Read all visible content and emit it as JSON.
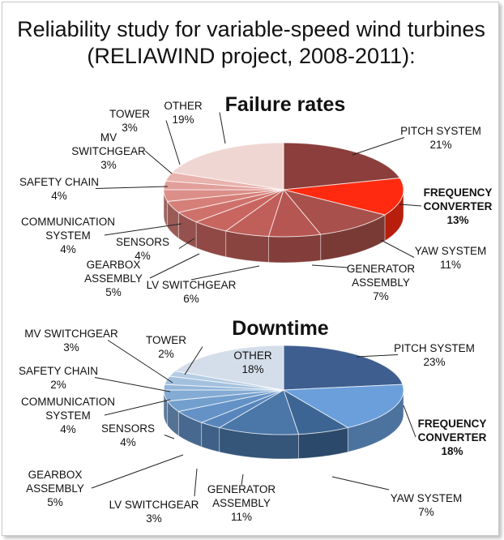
{
  "page_title": "Reliability study for variable-speed wind turbines (RELIAWIND project, 2008-2011):",
  "chart_data": [
    {
      "type": "pie",
      "title": "Failure rates",
      "categories": [
        "PITCH SYSTEM",
        "FREQUENCY CONVERTER",
        "YAW SYSTEM",
        "GENERATOR ASSEMBLY",
        "LV SWITCHGEAR",
        "GEARBOX ASSEMBLY",
        "SENSORS",
        "COMMUNICATION SYSTEM",
        "SAFETY CHAIN",
        "MV SWITCHGEAR",
        "TOWER",
        "OTHER"
      ],
      "values": [
        21,
        13,
        11,
        7,
        6,
        5,
        4,
        4,
        4,
        3,
        3,
        19
      ],
      "labels": [
        {
          "lines": [
            "PITCH SYSTEM",
            "21%"
          ],
          "color": "#111111",
          "bold": false
        },
        {
          "lines": [
            "FREQUENCY",
            "CONVERTER",
            "13%"
          ],
          "color": "#e31a1a",
          "bold": true
        },
        {
          "lines": [
            "YAW SYSTEM",
            "11%"
          ],
          "color": "#111111",
          "bold": false
        },
        {
          "lines": [
            "GENERATOR",
            "ASSEMBLY",
            "7%"
          ],
          "color": "#111111",
          "bold": false
        },
        {
          "lines": [
            "LV SWITCHGEAR",
            "6%"
          ],
          "color": "#111111",
          "bold": false
        },
        {
          "lines": [
            "GEARBOX",
            "ASSEMBLY",
            "5%"
          ],
          "color": "#111111",
          "bold": false
        },
        {
          "lines": [
            "SENSORS",
            "4%"
          ],
          "color": "#111111",
          "bold": false
        },
        {
          "lines": [
            "COMMUNICATION",
            "SYSTEM",
            "4%"
          ],
          "color": "#111111",
          "bold": false
        },
        {
          "lines": [
            "SAFETY CHAIN",
            "4%"
          ],
          "color": "#111111",
          "bold": false
        },
        {
          "lines": [
            "MV",
            "SWITCHGEAR",
            "3%"
          ],
          "color": "#111111",
          "bold": false
        },
        {
          "lines": [
            "TOWER",
            "3%"
          ],
          "color": "#111111",
          "bold": false
        },
        {
          "lines": [
            "OTHER",
            "19%"
          ],
          "color": "#111111",
          "bold": false
        }
      ],
      "colors": [
        "#8b3e3b",
        "#ff2a10",
        "#a8504b",
        "#b65652",
        "#c05e59",
        "#c8655f",
        "#cf716b",
        "#d67f79",
        "#dc8e88",
        "#e29f9a",
        "#e8b2ad",
        "#f0d6d3"
      ]
    },
    {
      "type": "pie",
      "title": "Downtime",
      "categories": [
        "PITCH SYSTEM",
        "FREQUENCY CONVERTER",
        "YAW SYSTEM",
        "GENERATOR ASSEMBLY",
        "LV SWITCHGEAR",
        "GEARBOX ASSEMBLY",
        "SENSORS",
        "COMMUNICATION SYSTEM",
        "SAFETY CHAIN",
        "MV SWITCHGEAR",
        "TOWER",
        "OTHER"
      ],
      "values": [
        23,
        18,
        7,
        11,
        3,
        5,
        4,
        4,
        2,
        3,
        2,
        18
      ],
      "labels": [
        {
          "lines": [
            "PITCH SYSTEM",
            "23%"
          ],
          "color": "#111111",
          "bold": false
        },
        {
          "lines": [
            "FREQUENCY",
            "CONVERTER",
            "18%"
          ],
          "color": "#2e75b6",
          "bold": true
        },
        {
          "lines": [
            "YAW SYSTEM",
            "7%"
          ],
          "color": "#111111",
          "bold": false
        },
        {
          "lines": [
            "GENERATOR",
            "ASSEMBLY",
            "11%"
          ],
          "color": "#111111",
          "bold": false
        },
        {
          "lines": [
            "LV SWITCHGEAR",
            "3%"
          ],
          "color": "#111111",
          "bold": false
        },
        {
          "lines": [
            "GEARBOX",
            "ASSEMBLY",
            "5%"
          ],
          "color": "#111111",
          "bold": false
        },
        {
          "lines": [
            "SENSORS",
            "4%"
          ],
          "color": "#111111",
          "bold": false
        },
        {
          "lines": [
            "COMMUNICATION",
            "SYSTEM",
            "4%"
          ],
          "color": "#111111",
          "bold": false
        },
        {
          "lines": [
            "SAFETY CHAIN",
            "2%"
          ],
          "color": "#111111",
          "bold": false
        },
        {
          "lines": [
            "MV SWITCHGEAR",
            "3%"
          ],
          "color": "#111111",
          "bold": false
        },
        {
          "lines": [
            "TOWER",
            "2%"
          ],
          "color": "#111111",
          "bold": false
        },
        {
          "lines": [
            "OTHER",
            "18%"
          ],
          "color": "#111111",
          "bold": false
        }
      ],
      "colors": [
        "#3e5e8f",
        "#6a9fdc",
        "#3c6593",
        "#4a76a8",
        "#5886bc",
        "#6492c6",
        "#739fcd",
        "#83abd3",
        "#93b6d9",
        "#a3c1de",
        "#b5cde4",
        "#d4deea"
      ]
    }
  ]
}
